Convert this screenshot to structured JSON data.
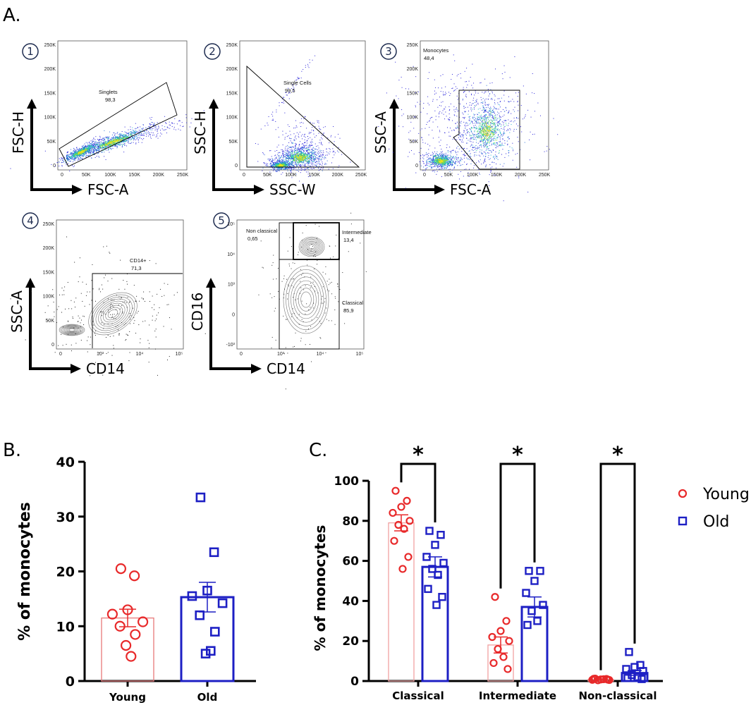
{
  "panel_labels": {
    "a": "A.",
    "b": "B.",
    "c": "C."
  },
  "flow_plots": [
    {
      "step": "1",
      "xlabel": "FSC-A",
      "ylabel": "FSC-H",
      "gate_name": "Singlets",
      "gate_value": "98,3",
      "xticks": [
        "0",
        "50K",
        "100K",
        "150K",
        "200K",
        "250K"
      ],
      "yticks": [
        "0",
        "50K",
        "100K",
        "150K",
        "200K",
        "250K"
      ]
    },
    {
      "step": "2",
      "xlabel": "SSC-W",
      "ylabel": "SSC-H",
      "gate_name": "Single Cells",
      "gate_value": "99,5",
      "xticks": [
        "0",
        "50K",
        "100K",
        "150K",
        "200K",
        "250K"
      ],
      "yticks": [
        "0",
        "50K",
        "100K",
        "150K",
        "200K",
        "250K"
      ]
    },
    {
      "step": "3",
      "xlabel": "FSC-A",
      "ylabel": "SSC-A",
      "gate_name": "Monocytes",
      "gate_value": "48,4",
      "xticks": [
        "0",
        "50K",
        "100K",
        "150K",
        "200K",
        "250K"
      ],
      "yticks": [
        "0",
        "50K",
        "100K",
        "150K",
        "200K",
        "250K"
      ]
    },
    {
      "step": "4",
      "xlabel": "CD14",
      "ylabel": "SSC-A",
      "gate_name": "CD14+",
      "gate_value": "71,3",
      "xticks": [
        "0",
        "10³",
        "10⁴",
        "10⁵"
      ],
      "yticks": [
        "0",
        "50K",
        "100K",
        "150K",
        "200K",
        "250K"
      ]
    },
    {
      "step": "5",
      "xlabel": "CD14",
      "ylabel": "CD16",
      "gates": [
        {
          "name": "Non classical",
          "value": "0,65"
        },
        {
          "name": "Intermediate",
          "value": "13,4"
        },
        {
          "name": "Classical",
          "value": "85,9"
        }
      ],
      "xticks": [
        "0",
        "10³",
        "10⁴",
        "10⁵"
      ],
      "yticks": [
        "-10³",
        "0",
        "10³",
        "10⁴",
        "10⁵"
      ]
    }
  ],
  "chart_data": [
    {
      "type": "bar",
      "panel": "B",
      "ylabel": "% of monocytes",
      "ylim": [
        0,
        40
      ],
      "yticks": [
        0,
        10,
        20,
        30,
        40
      ],
      "categories": [
        "Young",
        "Old"
      ],
      "means": [
        11.5,
        15.3
      ],
      "sem": [
        1.6,
        2.7
      ],
      "colors": [
        "#e8797a",
        "#1d1fc4"
      ],
      "point_colors": [
        "#e8292a",
        "#1d1fc4"
      ],
      "markers": [
        "circle",
        "square"
      ],
      "points": [
        [
          20.5,
          19.2,
          13.0,
          12.2,
          10.8,
          10.0,
          8.5,
          6.5,
          4.5
        ],
        [
          33.5,
          23.5,
          16.5,
          15.5,
          14.2,
          12.0,
          9.0,
          5.0,
          5.5
        ]
      ]
    },
    {
      "type": "bar",
      "panel": "C",
      "ylabel": "% of monocytes",
      "ylim": [
        0,
        100
      ],
      "yticks": [
        0,
        20,
        40,
        60,
        80,
        100
      ],
      "categories": [
        "Classical",
        "Intermediate",
        "Non-classical"
      ],
      "series": [
        {
          "name": "Young",
          "color": "#e8292a",
          "bar_color": "#f0a0a0",
          "marker": "circle",
          "means": [
            79,
            18,
            0.8
          ],
          "sem": [
            4,
            4,
            0.3
          ],
          "points": [
            [
              95,
              90,
              87,
              84,
              80,
              78,
              76,
              70,
              62,
              56
            ],
            [
              42,
              30,
              25,
              22,
              20,
              16,
              12,
              9,
              6
            ],
            [
              1.2,
              1.0,
              0.8,
              0.6,
              0.5,
              0.4,
              0.9,
              1.1,
              0.7
            ]
          ]
        },
        {
          "name": "Old",
          "color": "#1d1fc4",
          "bar_color": "#1d1fc4",
          "marker": "square",
          "means": [
            57,
            37,
            4
          ],
          "sem": [
            5,
            5,
            1.2
          ],
          "points": [
            [
              75,
              73,
              68,
              62,
              59,
              56,
              53,
              46,
              42,
              38
            ],
            [
              55,
              55,
              50,
              44,
              38,
              35,
              30,
              28
            ],
            [
              14.5,
              8,
              7,
              6,
              5,
              3,
              2,
              1.5,
              1
            ]
          ]
        }
      ],
      "significance": [
        "*",
        "*",
        "*"
      ],
      "legend": [
        "Young",
        "Old"
      ]
    }
  ]
}
